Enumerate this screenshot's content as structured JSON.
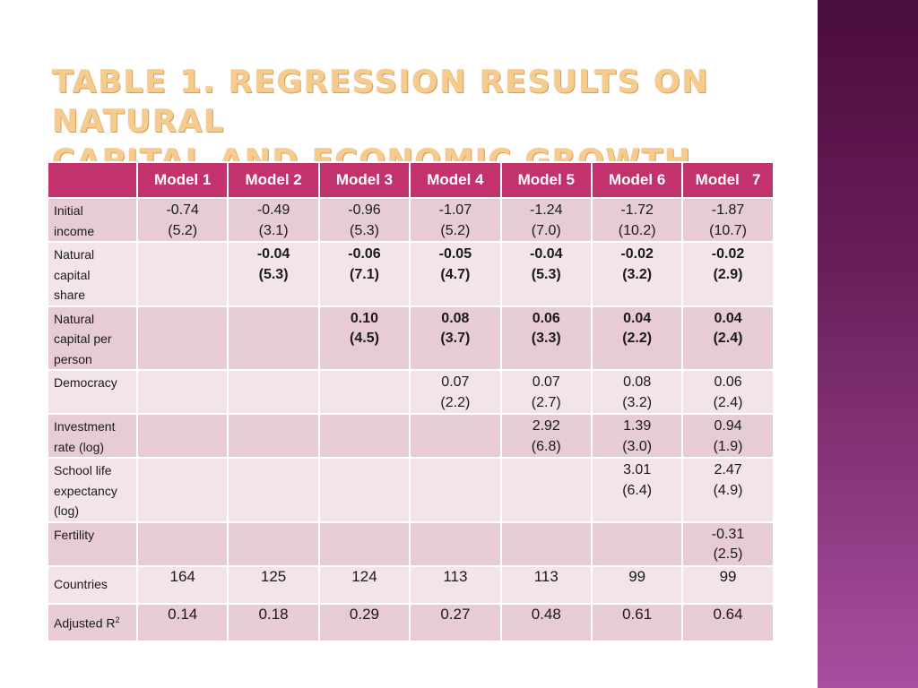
{
  "title": {
    "line1": "Table 1. Regression results on natural",
    "line2": "capital and economic growth"
  },
  "table": {
    "headers": [
      "",
      "Model 1",
      "Model 2",
      "Model 3",
      "Model 4",
      "Model 5",
      "Model 6",
      "Model   7"
    ],
    "rows": [
      {
        "label": [
          "Initial",
          "income"
        ],
        "cells": [
          [
            "-0.74",
            "(5.2)"
          ],
          [
            "-0.49",
            "(3.1)"
          ],
          [
            "-0.96",
            "(5.3)"
          ],
          [
            "-1.07",
            "(5.2)"
          ],
          [
            "-1.24",
            "(7.0)"
          ],
          [
            "-1.72",
            "(10.2)"
          ],
          [
            "-1.87",
            "(10.7)"
          ]
        ],
        "bold": false
      },
      {
        "label": [
          "Natural",
          "capital",
          "share"
        ],
        "cells": [
          [],
          [
            "-0.04",
            "(5.3)"
          ],
          [
            "-0.06",
            "(7.1)"
          ],
          [
            "-0.05",
            "(4.7)"
          ],
          [
            "-0.04",
            "(5.3)"
          ],
          [
            "-0.02",
            "(3.2)"
          ],
          [
            "-0.02",
            "(2.9)"
          ]
        ],
        "bold": true
      },
      {
        "label": [
          "Natural",
          "capital per",
          "person"
        ],
        "cells": [
          [],
          [],
          [
            "0.10",
            "(4.5)"
          ],
          [
            "0.08",
            "(3.7)"
          ],
          [
            "0.06",
            "(3.3)"
          ],
          [
            "0.04",
            "(2.2)"
          ],
          [
            "0.04",
            "(2.4)"
          ]
        ],
        "bold": true
      },
      {
        "label": [
          "Democracy"
        ],
        "cells": [
          [],
          [],
          [],
          [
            "0.07",
            "(2.2)"
          ],
          [
            "0.07",
            "(2.7)"
          ],
          [
            "0.08",
            "(3.2)"
          ],
          [
            "0.06",
            "(2.4)"
          ]
        ],
        "bold": false
      },
      {
        "label": [
          "Investment",
          "rate (log)"
        ],
        "cells": [
          [],
          [],
          [],
          [],
          [
            "2.92",
            "(6.8)"
          ],
          [
            "1.39",
            "(3.0)"
          ],
          [
            "0.94",
            "(1.9)"
          ]
        ],
        "bold": false
      },
      {
        "label": [
          "School life",
          "expectancy",
          "(log)"
        ],
        "cells": [
          [],
          [],
          [],
          [],
          [],
          [
            "3.01",
            "(6.4)"
          ],
          [
            "2.47",
            "(4.9)"
          ]
        ],
        "bold": false
      },
      {
        "label": [
          "Fertility"
        ],
        "cells": [
          [],
          [],
          [],
          [],
          [],
          [],
          [
            "-0.31",
            "(2.5)"
          ]
        ],
        "bold": false
      },
      {
        "label": [
          "Countries"
        ],
        "cells": [
          [
            "164"
          ],
          [
            "125"
          ],
          [
            "124"
          ],
          [
            "113"
          ],
          [
            "113"
          ],
          [
            "99"
          ],
          [
            "99"
          ]
        ],
        "bold": false
      },
      {
        "label": [
          "Adjusted R"
        ],
        "label_sup": "2",
        "cells": [
          [
            "0.14"
          ],
          [
            "0.18"
          ],
          [
            "0.29"
          ],
          [
            "0.27"
          ],
          [
            "0.48"
          ],
          [
            "0.61"
          ],
          [
            "0.64"
          ]
        ],
        "bold": false
      }
    ]
  },
  "colors": {
    "header_bg": "#c2336e",
    "row_odd": "#e7ccd7",
    "row_even": "#f2e4ea",
    "title": "#f6cc8e",
    "side_band": "#6a1f5a"
  }
}
